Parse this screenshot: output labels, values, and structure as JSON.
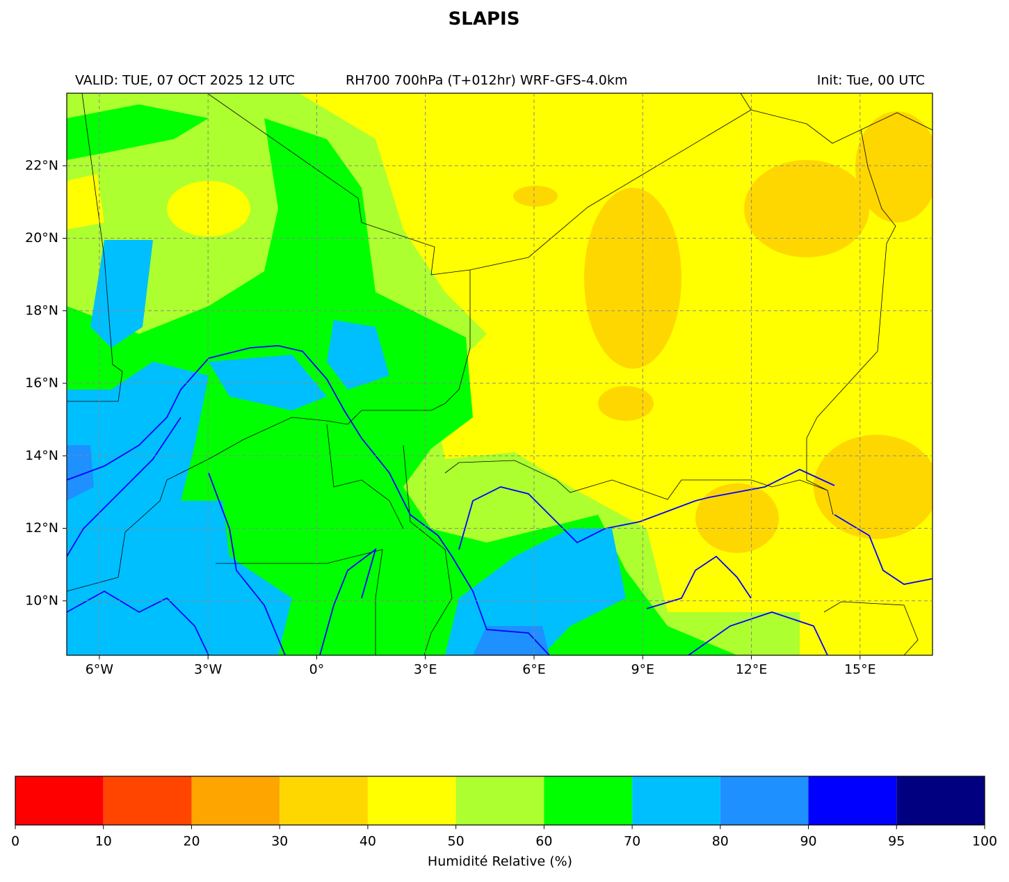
{
  "title": "SLAPIS",
  "header": {
    "valid": "VALID: TUE, 07 OCT 2025 12 UTC",
    "product": "RH700 700hPa (T+012hr) WRF-GFS-4.0km",
    "init": "Init: Tue, 00 UTC"
  },
  "map": {
    "xlim": [
      -6.9,
      17
    ],
    "ylim": [
      8.5,
      24
    ],
    "grid": true,
    "xticks": [
      {
        "value": -6,
        "label": "6°W"
      },
      {
        "value": -3,
        "label": "3°W"
      },
      {
        "value": 0,
        "label": "0°"
      },
      {
        "value": 3,
        "label": "3°E"
      },
      {
        "value": 6,
        "label": "6°E"
      },
      {
        "value": 9,
        "label": "9°E"
      },
      {
        "value": 12,
        "label": "12°E"
      },
      {
        "value": 15,
        "label": "15°E"
      }
    ],
    "yticks": [
      {
        "value": 10,
        "label": "10°N"
      },
      {
        "value": 12,
        "label": "12°N"
      },
      {
        "value": 14,
        "label": "14°N"
      },
      {
        "value": 16,
        "label": "16°N"
      },
      {
        "value": 18,
        "label": "18°N"
      },
      {
        "value": 20,
        "label": "20°N"
      },
      {
        "value": 22,
        "label": "22°N"
      }
    ]
  },
  "colorbar": {
    "label": "Humidité Relative (%)",
    "bounds": [
      0,
      10,
      20,
      30,
      40,
      50,
      60,
      70,
      80,
      90,
      95,
      100
    ],
    "colors": [
      "#ff0000",
      "#ff4500",
      "#ffa500",
      "#ffd700",
      "#ffff00",
      "#adff2f",
      "#00ff00",
      "#00bfff",
      "#1e90ff",
      "#0000ff",
      "#000080"
    ]
  }
}
